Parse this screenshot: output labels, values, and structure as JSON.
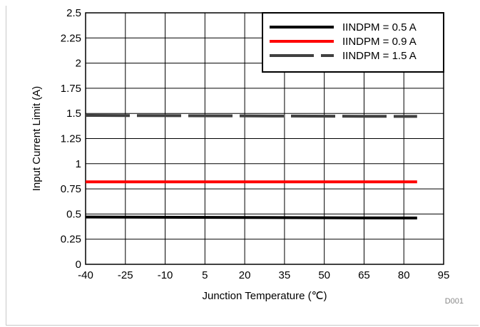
{
  "chart_data": {
    "type": "line",
    "title": "",
    "xlabel": "Junction Temperature (℃)",
    "ylabel": "Input Current Limit (A)",
    "xlim": [
      -40,
      95
    ],
    "ylim": [
      0,
      2.5
    ],
    "xticks": [
      "-40",
      "-25",
      "-10",
      "5",
      "20",
      "35",
      "50",
      "65",
      "80",
      "95"
    ],
    "yticks": [
      "0",
      "0.25",
      "0.5",
      "0.75",
      "1",
      "1.25",
      "1.5",
      "1.75",
      "2",
      "2.25",
      "2.5"
    ],
    "grid": true,
    "legend_position": "top-right",
    "x": [
      -40,
      85
    ],
    "series": [
      {
        "name": "IINDPM = 0.5 A",
        "values": [
          0.47,
          0.46
        ],
        "color": "#000000",
        "style": "solid"
      },
      {
        "name": "IINDPM =  0.9 A",
        "values": [
          0.82,
          0.82
        ],
        "color": "#ff0000",
        "style": "solid"
      },
      {
        "name": "IINDPM = 1.5 A",
        "values": [
          1.48,
          1.47
        ],
        "color": "#404040",
        "style": "dashed"
      }
    ],
    "annotation": "D001"
  }
}
